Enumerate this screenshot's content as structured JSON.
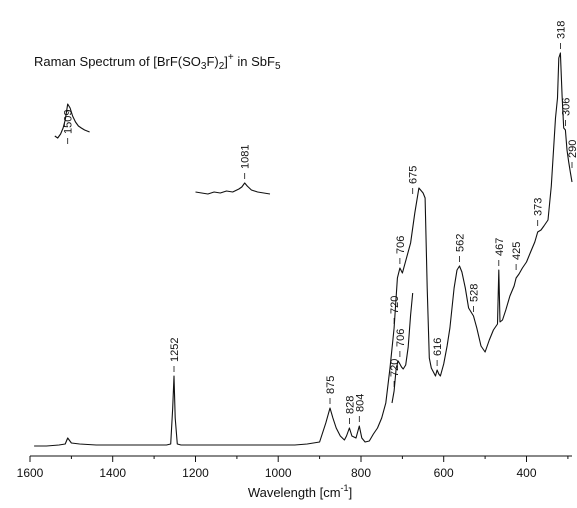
{
  "chart_data": {
    "type": "line",
    "title": "Raman Spectrum of  [BrF(SO3F)2]+ in SbF5",
    "title_parts": {
      "main": "Raman Spectrum of  [BrF(SO",
      "sub1": "3",
      "mid": "F)",
      "sub2": "2",
      "end": "]",
      "sup": "+",
      "tail": " in SbF",
      "sub3": "5"
    },
    "xlabel": "Wavelength [cm-1]",
    "xlabel_parts": {
      "main": "Wavelength [cm",
      "sup": "-1",
      "end": "]"
    },
    "ylabel": "",
    "xlim": [
      1600,
      290
    ],
    "x_reversed": true,
    "grid": false,
    "x_ticks": [
      "1600",
      "1400",
      "1200",
      "1000",
      "800",
      "600",
      "400"
    ],
    "x_tick_values": [
      1600,
      1400,
      1200,
      1000,
      800,
      600,
      400
    ],
    "series": [
      {
        "x": [
          1590,
          1560,
          1530,
          1515,
          1509,
          1500,
          1480,
          1440,
          1400,
          1350,
          1300,
          1270,
          1260,
          1255,
          1252,
          1249,
          1244,
          1235,
          1200,
          1150,
          1100,
          1050,
          1000,
          960,
          930,
          900,
          885,
          875,
          868,
          860,
          850,
          840,
          835,
          828,
          822,
          812,
          804,
          798,
          790,
          780,
          770,
          760,
          750,
          740,
          730,
          720,
          712,
          706,
          700,
          690,
          680,
          670,
          660,
          650,
          645,
          640,
          635,
          630,
          625,
          620,
          616,
          612,
          608,
          600,
          592,
          585,
          575,
          568,
          562,
          556,
          548,
          540,
          528,
          520,
          510,
          500,
          490,
          480,
          470,
          467,
          464,
          458,
          450,
          440,
          430,
          425,
          418,
          410,
          400,
          390,
          380,
          373,
          365,
          358,
          348,
          340,
          330,
          325,
          322,
          318,
          314,
          310,
          306,
          302,
          298,
          294,
          290
        ],
        "y": [
          2,
          2,
          3,
          4,
          10,
          5,
          4,
          3,
          3,
          3,
          3,
          3,
          4,
          40,
          72,
          30,
          4,
          3,
          3,
          3,
          3,
          3,
          3,
          3,
          4,
          6,
          25,
          40,
          30,
          20,
          12,
          8,
          12,
          20,
          12,
          10,
          22,
          10,
          6,
          7,
          14,
          20,
          30,
          45,
          80,
          120,
          170,
          180,
          175,
          190,
          205,
          235,
          260,
          255,
          250,
          160,
          90,
          80,
          76,
          72,
          78,
          74,
          72,
          84,
          102,
          120,
          160,
          178,
          182,
          176,
          160,
          140,
          132,
          120,
          102,
          96,
          108,
          118,
          124,
          178,
          126,
          128,
          138,
          152,
          162,
          170,
          174,
          180,
          186,
          196,
          206,
          216,
          218,
          222,
          228,
          262,
          330,
          350,
          390,
          395,
          352,
          320,
          318,
          298,
          286,
          276,
          266
        ]
      }
    ],
    "insets": [
      {
        "x": [
          1540,
          1533,
          1526,
          1520,
          1515,
          1509,
          1503,
          1497,
          1490,
          1483,
          1476,
          1468,
          1462,
          1456
        ],
        "y": [
          22,
          20,
          24,
          30,
          38,
          54,
          50,
          42,
          36,
          32,
          30,
          28,
          27,
          26
        ]
      },
      {
        "x": [
          1200,
          1185,
          1170,
          1155,
          1140,
          1125,
          1110,
          1095,
          1088,
          1081,
          1075,
          1065,
          1050,
          1035,
          1020
        ],
        "y": [
          46,
          45,
          44,
          46,
          45,
          47,
          46,
          49,
          51,
          55,
          52,
          48,
          46,
          45,
          44
        ]
      },
      {
        "x": [
          725,
          720,
          715,
          710,
          706,
          702,
          698,
          692,
          686,
          680,
          675
        ],
        "y": [
          140,
          152,
          175,
          182,
          179,
          176,
          174,
          178,
          196,
          228,
          250
        ]
      }
    ],
    "peak_labels": [
      {
        "text": "1509",
        "x": 1509,
        "y": 10,
        "inset": 0
      },
      {
        "text": "1252",
        "x": 1252,
        "y": 72
      },
      {
        "text": "1081",
        "x": 1081,
        "y": 55,
        "inset": 1
      },
      {
        "text": "875",
        "x": 875,
        "y": 40
      },
      {
        "text": "828",
        "x": 828,
        "y": 20
      },
      {
        "text": "804",
        "x": 804,
        "y": 22
      },
      {
        "text": "720",
        "x": 720,
        "y": 120
      },
      {
        "text": "706",
        "x": 706,
        "y": 180
      },
      {
        "text": "720",
        "x": 720,
        "y": 152,
        "inset": 2
      },
      {
        "text": "706",
        "x": 706,
        "y": 182,
        "inset": 2
      },
      {
        "text": "675",
        "x": 675,
        "y": 250
      },
      {
        "text": "616",
        "x": 616,
        "y": 78
      },
      {
        "text": "562",
        "x": 562,
        "y": 182
      },
      {
        "text": "528",
        "x": 528,
        "y": 132
      },
      {
        "text": "467",
        "x": 467,
        "y": 178
      },
      {
        "text": "425",
        "x": 425,
        "y": 174
      },
      {
        "text": "373",
        "x": 373,
        "y": 218
      },
      {
        "text": "318",
        "x": 318,
        "y": 395
      },
      {
        "text": "306",
        "x": 306,
        "y": 318
      },
      {
        "text": "290",
        "x": 290,
        "y": 276
      }
    ]
  }
}
